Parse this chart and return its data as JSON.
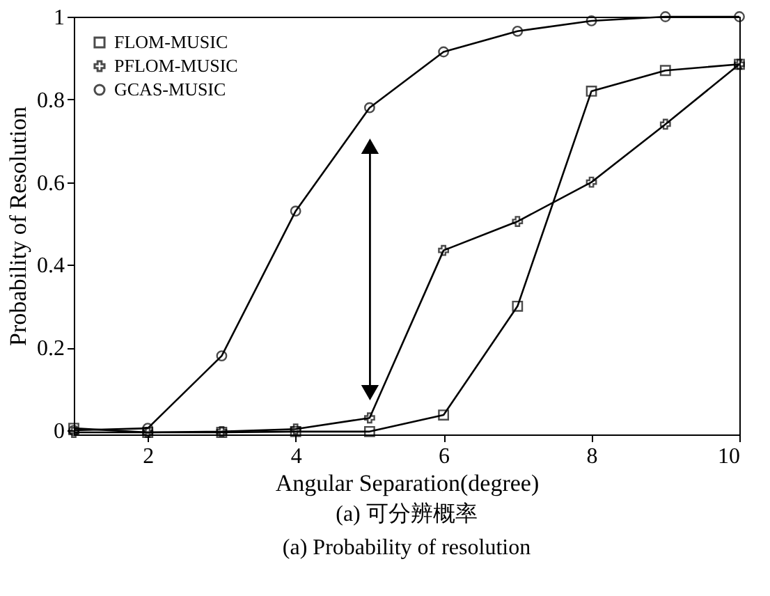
{
  "chart_data": {
    "type": "line",
    "xlabel": "Angular Separation(degree)",
    "ylabel": "Probability of Resolution",
    "x": [
      1,
      2,
      3,
      4,
      5,
      6,
      7,
      8,
      9,
      10
    ],
    "series": [
      {
        "name": "FLOM-MUSIC",
        "color": "#000000",
        "marker": "square",
        "values": [
          0.005,
          -0.005,
          -0.005,
          -0.003,
          -0.003,
          0.037,
          0.3,
          0.82,
          0.87,
          0.885
        ]
      },
      {
        "name": "PFLOM-MUSIC",
        "color": "#000000",
        "marker": "cross",
        "values": [
          -0.005,
          -0.005,
          -0.003,
          0.003,
          0.03,
          0.435,
          0.505,
          0.6,
          0.74,
          0.885
        ]
      },
      {
        "name": "GCAS-MUSIC",
        "color": "#000000",
        "marker": "circle",
        "values": [
          0.0,
          0.005,
          0.18,
          0.53,
          0.78,
          0.915,
          0.965,
          0.99,
          1.0,
          1.0
        ]
      }
    ],
    "xlim": [
      1,
      10
    ],
    "ylim": [
      -0.01,
      1
    ],
    "xticks": [
      2,
      4,
      6,
      8,
      10
    ],
    "yticks": [
      0,
      0.2,
      0.4,
      0.6,
      0.8,
      1
    ],
    "grid": false,
    "legend": "top left",
    "line_style": "solid",
    "annotations": [
      "(a) 可分辨概率",
      "(a) Probability of resolution"
    ]
  }
}
